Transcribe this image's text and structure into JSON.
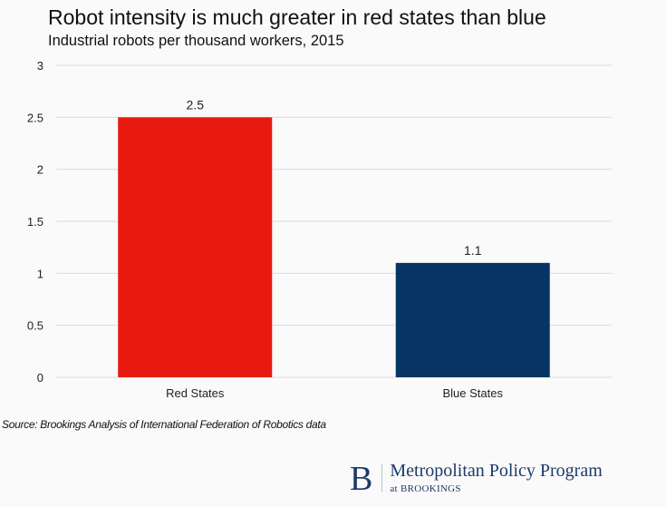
{
  "chart_data": {
    "type": "bar",
    "title": "Robot intensity is much greater in red states than blue",
    "subtitle": "Industrial robots per thousand workers, 2015",
    "categories": [
      "Red States",
      "Blue States"
    ],
    "values": [
      2.5,
      1.1
    ],
    "data_labels": [
      "2.5",
      "1.1"
    ],
    "colors": [
      "#e8190f",
      "#063565"
    ],
    "xlabel": "",
    "ylabel": "",
    "ylim": [
      0,
      3
    ],
    "yticks": [
      0,
      0.5,
      1,
      1.5,
      2,
      2.5,
      3
    ],
    "ytick_labels": [
      "0",
      "0.5",
      "1",
      "1.5",
      "2",
      "2.5",
      "3"
    ],
    "grid": true,
    "legend": "none"
  },
  "source": "Source: Brookings Analysis of International Federation of Robotics data",
  "logo": {
    "letter": "B",
    "name": "Metropolitan Policy Program",
    "sub": "at BROOKINGS",
    "color": "#1c3a6b"
  }
}
